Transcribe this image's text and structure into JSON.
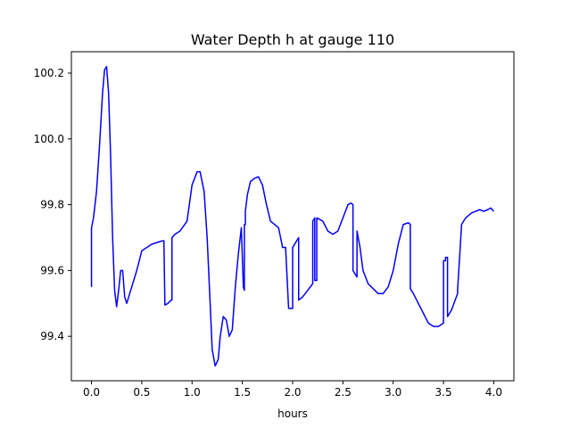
{
  "chart_data": {
    "type": "line",
    "title": "Water Depth h at gauge 110",
    "xlabel": "hours",
    "ylabel": "",
    "xlim": [
      -0.2,
      4.2
    ],
    "ylim": [
      99.265,
      100.265
    ],
    "xticks": [
      0.0,
      0.5,
      1.0,
      1.5,
      2.0,
      2.5,
      3.0,
      3.5,
      4.0
    ],
    "xtick_labels": [
      "0.0",
      "0.5",
      "1.0",
      "1.5",
      "2.0",
      "2.5",
      "3.0",
      "3.5",
      "4.0"
    ],
    "yticks": [
      99.4,
      99.6,
      99.8,
      100.0,
      100.2
    ],
    "ytick_labels": [
      "99.4",
      "99.6",
      "99.8",
      "100.0",
      "100.2"
    ],
    "grid": false,
    "colors": {
      "line": "#0000ff",
      "axes": "#000000",
      "background": "#ffffff"
    },
    "series": [
      {
        "x": [
          0.0,
          0.0,
          0.02,
          0.05,
          0.08,
          0.11,
          0.13,
          0.15,
          0.17,
          0.19,
          0.21,
          0.23,
          0.25,
          0.27,
          0.29,
          0.31,
          0.33,
          0.35,
          0.37,
          0.4,
          0.45,
          0.5,
          0.55,
          0.6,
          0.65,
          0.7,
          0.72,
          0.73,
          0.73,
          0.76,
          0.79,
          0.8,
          0.8,
          0.83,
          0.88,
          0.95,
          1.0,
          1.05,
          1.08,
          1.12,
          1.15,
          1.18,
          1.2,
          1.23,
          1.26,
          1.28,
          1.31,
          1.34,
          1.37,
          1.4,
          1.43,
          1.46,
          1.49,
          1.51,
          1.52,
          1.52,
          1.53,
          1.53,
          1.55,
          1.58,
          1.62,
          1.66,
          1.7,
          1.74,
          1.78,
          1.82,
          1.86,
          1.9,
          1.93,
          1.96,
          1.96,
          2.0,
          2.0,
          2.04,
          2.06,
          2.06,
          2.1,
          2.15,
          2.2,
          2.2,
          2.22,
          2.22,
          2.24,
          2.24,
          2.3,
          2.35,
          2.4,
          2.45,
          2.5,
          2.55,
          2.58,
          2.6,
          2.6,
          2.64,
          2.64,
          2.67,
          2.7,
          2.75,
          2.8,
          2.85,
          2.9,
          2.95,
          3.0,
          3.05,
          3.1,
          3.15,
          3.17,
          3.17,
          3.2,
          3.25,
          3.3,
          3.35,
          3.4,
          3.45,
          3.5,
          3.5,
          3.52,
          3.52,
          3.54,
          3.54,
          3.58,
          3.64,
          3.64,
          3.68,
          3.72,
          3.78,
          3.82,
          3.86,
          3.9,
          3.94,
          3.97,
          4.0
        ],
        "y": [
          99.55,
          99.73,
          99.76,
          99.84,
          99.98,
          100.14,
          100.21,
          100.22,
          100.14,
          99.95,
          99.7,
          99.54,
          99.49,
          99.54,
          99.6,
          99.6,
          99.52,
          99.5,
          99.52,
          99.55,
          99.6,
          99.66,
          99.67,
          99.68,
          99.685,
          99.69,
          99.69,
          99.495,
          99.495,
          99.5,
          99.51,
          99.51,
          99.7,
          99.71,
          99.72,
          99.75,
          99.86,
          99.9,
          99.9,
          99.84,
          99.7,
          99.5,
          99.36,
          99.31,
          99.33,
          99.4,
          99.46,
          99.45,
          99.4,
          99.42,
          99.55,
          99.65,
          99.73,
          99.55,
          99.54,
          99.74,
          99.74,
          99.78,
          99.83,
          99.87,
          99.88,
          99.885,
          99.86,
          99.8,
          99.75,
          99.74,
          99.73,
          99.67,
          99.67,
          99.485,
          99.485,
          99.485,
          99.67,
          99.69,
          99.7,
          99.51,
          99.52,
          99.54,
          99.56,
          99.75,
          99.76,
          99.57,
          99.57,
          99.76,
          99.75,
          99.72,
          99.71,
          99.72,
          99.76,
          99.8,
          99.805,
          99.8,
          99.6,
          99.58,
          99.72,
          99.67,
          99.6,
          99.56,
          99.545,
          99.53,
          99.53,
          99.55,
          99.6,
          99.68,
          99.74,
          99.745,
          99.74,
          99.545,
          99.53,
          99.5,
          99.47,
          99.44,
          99.43,
          99.43,
          99.44,
          99.63,
          99.63,
          99.64,
          99.64,
          99.46,
          99.48,
          99.53,
          99.54,
          99.74,
          99.76,
          99.775,
          99.78,
          99.785,
          99.78,
          99.785,
          99.79,
          99.78
        ]
      }
    ]
  }
}
